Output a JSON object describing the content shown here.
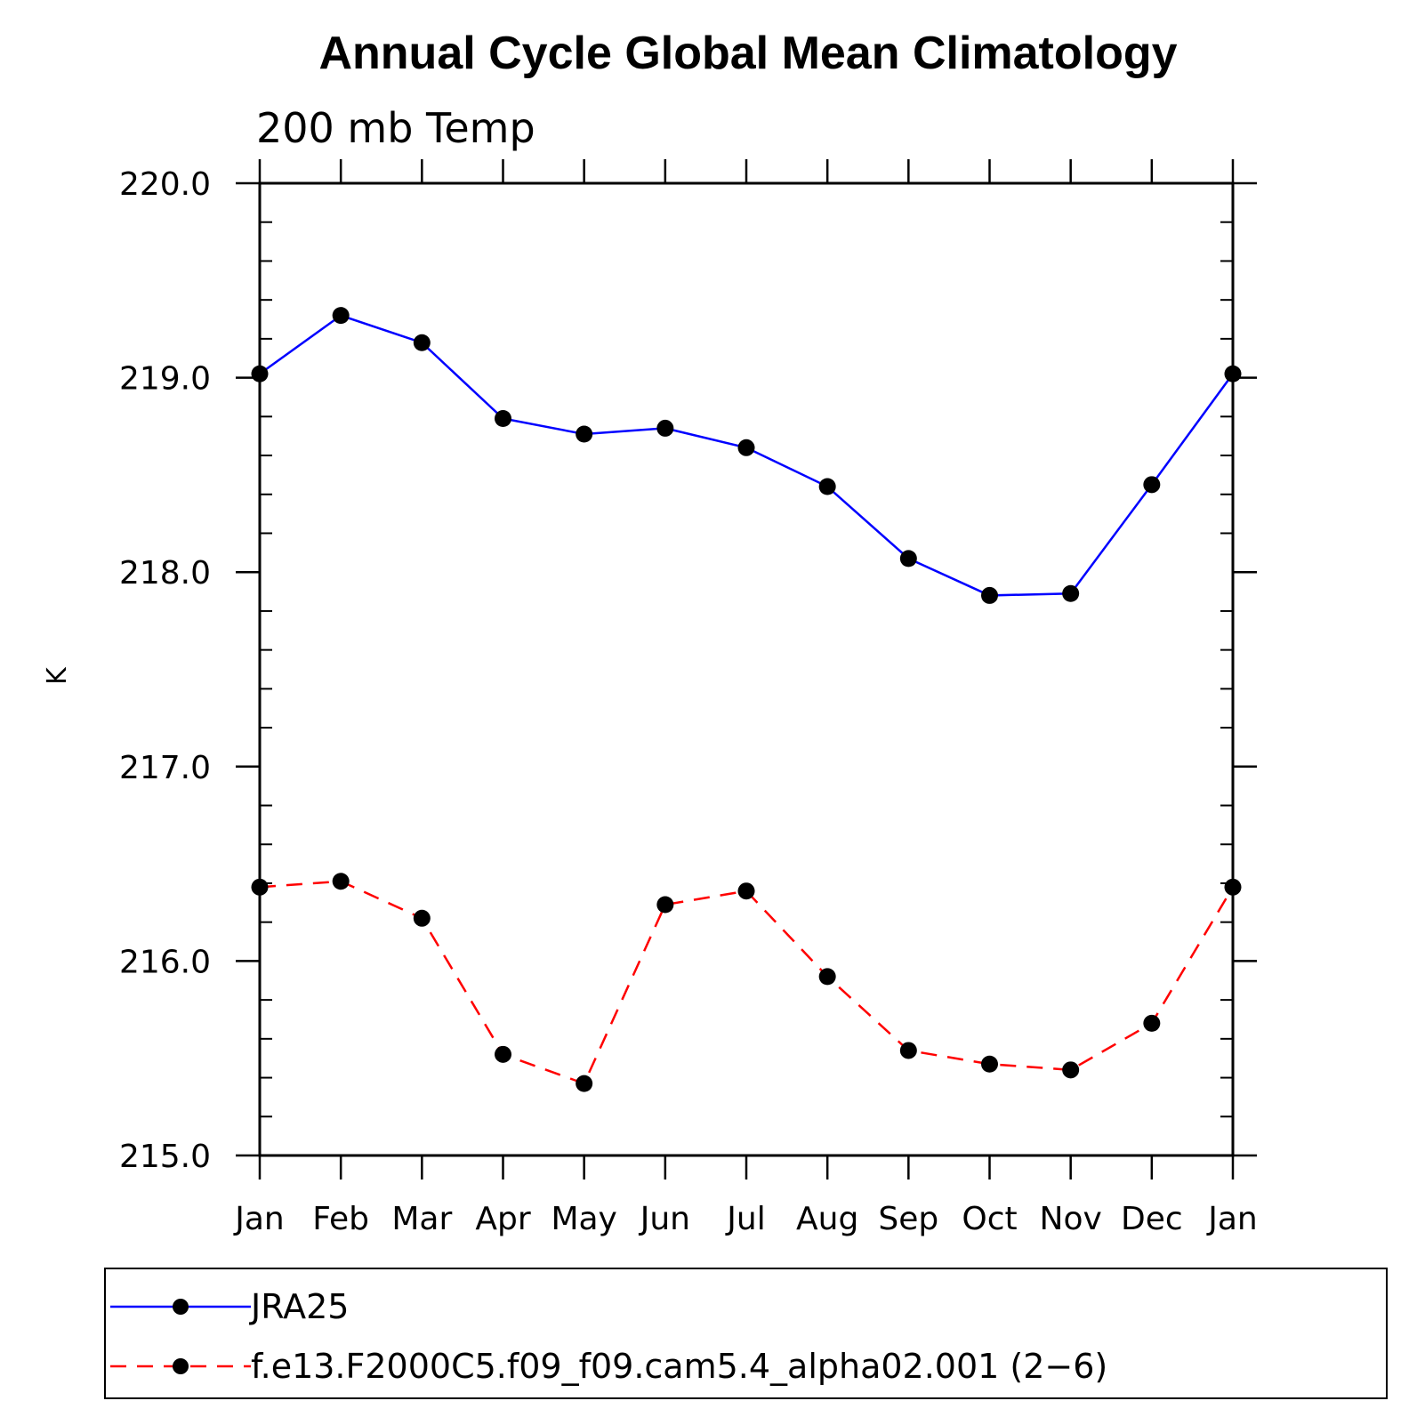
{
  "chart_data": {
    "type": "line",
    "title": "Annual Cycle Global Mean Climatology",
    "subtitle": "200 mb Temp",
    "xlabel": "",
    "ylabel": "K",
    "categories": [
      "Jan",
      "Feb",
      "Mar",
      "Apr",
      "May",
      "Jun",
      "Jul",
      "Aug",
      "Sep",
      "Oct",
      "Nov",
      "Dec",
      "Jan"
    ],
    "ylim": [
      215.0,
      220.0
    ],
    "yticks": [
      "215.0",
      "216.0",
      "217.0",
      "218.0",
      "219.0",
      "220.0"
    ],
    "grid": false,
    "legend_position": "bottom",
    "series": [
      {
        "name": "JRA25",
        "color": "#0000ff",
        "dash": "solid",
        "values": [
          219.02,
          219.32,
          219.18,
          218.79,
          218.71,
          218.74,
          218.64,
          218.44,
          218.07,
          217.88,
          217.89,
          218.45,
          219.02
        ]
      },
      {
        "name": "f.e13.F2000C5.f09_f09.cam5.4_alpha02.001 (2−6)",
        "color": "#ff0000",
        "dash": "dashed",
        "values": [
          216.38,
          216.41,
          216.22,
          215.52,
          215.37,
          216.29,
          216.36,
          215.92,
          215.54,
          215.47,
          215.44,
          215.68,
          216.38
        ]
      }
    ]
  }
}
